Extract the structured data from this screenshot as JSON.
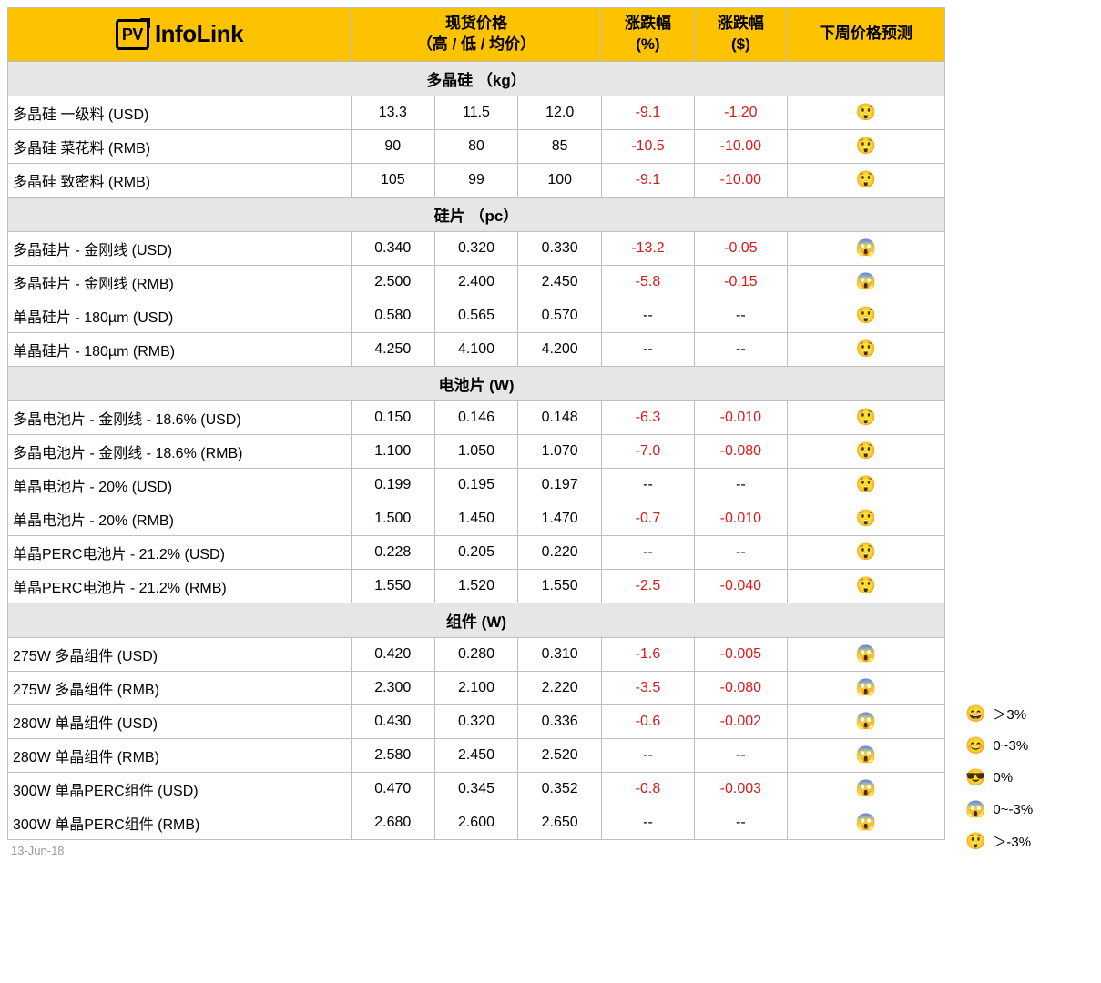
{
  "brand": {
    "pv": "PV",
    "name": "InfoLink"
  },
  "header": {
    "spot_price_l1": "现货价格",
    "spot_price_l2": "（高 / 低 / 均价）",
    "change_pct_l1": "涨跌幅",
    "change_pct_l2": "(%)",
    "change_dol_l1": "涨跌幅",
    "change_dol_l2": "($)",
    "forecast": "下周价格预测"
  },
  "sections": [
    {
      "title": "多晶硅 （kg）",
      "rows": [
        {
          "label": "多晶硅 一级料 (USD)",
          "high": "13.3",
          "low": "11.5",
          "avg": "12.0",
          "pct": "-9.1",
          "dol": "-1.20",
          "fc": "😲"
        },
        {
          "label": "多晶硅 菜花料 (RMB)",
          "high": "90",
          "low": "80",
          "avg": "85",
          "pct": "-10.5",
          "dol": "-10.00",
          "fc": "😲"
        },
        {
          "label": "多晶硅 致密料 (RMB)",
          "high": "105",
          "low": "99",
          "avg": "100",
          "pct": "-9.1",
          "dol": "-10.00",
          "fc": "😲"
        }
      ]
    },
    {
      "title": "硅片 （pc）",
      "rows": [
        {
          "label": "多晶硅片 - 金刚线 (USD)",
          "high": "0.340",
          "low": "0.320",
          "avg": "0.330",
          "pct": "-13.2",
          "dol": "-0.05",
          "fc": "😱"
        },
        {
          "label": "多晶硅片 - 金刚线 (RMB)",
          "high": "2.500",
          "low": "2.400",
          "avg": "2.450",
          "pct": "-5.8",
          "dol": "-0.15",
          "fc": "😱"
        },
        {
          "label": "单晶硅片 - 180µm (USD)",
          "high": "0.580",
          "low": "0.565",
          "avg": "0.570",
          "pct": "--",
          "dol": "--",
          "fc": "😲"
        },
        {
          "label": "单晶硅片 - 180µm (RMB)",
          "high": "4.250",
          "low": "4.100",
          "avg": "4.200",
          "pct": "--",
          "dol": "--",
          "fc": "😲"
        }
      ]
    },
    {
      "title": "电池片 (W)",
      "rows": [
        {
          "label": "多晶电池片 - 金刚线 - 18.6% (USD)",
          "high": "0.150",
          "low": "0.146",
          "avg": "0.148",
          "pct": "-6.3",
          "dol": "-0.010",
          "fc": "😲"
        },
        {
          "label": "多晶电池片 - 金刚线 - 18.6% (RMB)",
          "high": "1.100",
          "low": "1.050",
          "avg": "1.070",
          "pct": "-7.0",
          "dol": "-0.080",
          "fc": "😲"
        },
        {
          "label": "单晶电池片 - 20% (USD)",
          "high": "0.199",
          "low": "0.195",
          "avg": "0.197",
          "pct": "--",
          "dol": "--",
          "fc": "😲"
        },
        {
          "label": "单晶电池片 - 20% (RMB)",
          "high": "1.500",
          "low": "1.450",
          "avg": "1.470",
          "pct": "-0.7",
          "dol": "-0.010",
          "fc": "😲"
        },
        {
          "label": "单晶PERC电池片 - 21.2% (USD)",
          "high": "0.228",
          "low": "0.205",
          "avg": "0.220",
          "pct": "--",
          "dol": "--",
          "fc": "😲"
        },
        {
          "label": "单晶PERC电池片 - 21.2% (RMB)",
          "high": "1.550",
          "low": "1.520",
          "avg": "1.550",
          "pct": "-2.5",
          "dol": "-0.040",
          "fc": "😲"
        }
      ]
    },
    {
      "title": "组件 (W)",
      "rows": [
        {
          "label": "275W 多晶组件 (USD)",
          "high": "0.420",
          "low": "0.280",
          "avg": "0.310",
          "pct": "-1.6",
          "dol": "-0.005",
          "fc": "😱"
        },
        {
          "label": "275W 多晶组件 (RMB)",
          "high": "2.300",
          "low": "2.100",
          "avg": "2.220",
          "pct": "-3.5",
          "dol": "-0.080",
          "fc": "😱"
        },
        {
          "label": "280W 单晶组件 (USD)",
          "high": "0.430",
          "low": "0.320",
          "avg": "0.336",
          "pct": "-0.6",
          "dol": "-0.002",
          "fc": "😱"
        },
        {
          "label": "280W 单晶组件 (RMB)",
          "high": "2.580",
          "low": "2.450",
          "avg": "2.520",
          "pct": "--",
          "dol": "--",
          "fc": "😱"
        },
        {
          "label": "300W 单晶PERC组件 (USD)",
          "high": "0.470",
          "low": "0.345",
          "avg": "0.352",
          "pct": "-0.8",
          "dol": "-0.003",
          "fc": "😱"
        },
        {
          "label": "300W 单晶PERC组件 (RMB)",
          "high": "2.680",
          "low": "2.600",
          "avg": "2.650",
          "pct": "--",
          "dol": "--",
          "fc": "😱"
        }
      ]
    }
  ],
  "footer": {
    "date": "13-Jun-18"
  },
  "legend": [
    {
      "icon": "😄",
      "text": "＞3%"
    },
    {
      "icon": "😊",
      "text": "0~3%"
    },
    {
      "icon": "😎",
      "text": "0%"
    },
    {
      "icon": "😱",
      "text": "0~-3%"
    },
    {
      "icon": "😲",
      "text": "＞-3%"
    }
  ],
  "colors": {
    "header_bg": "#fdc300",
    "section_bg": "#e6e6e6",
    "border": "#bfbfbf",
    "negative": "#d71a1a",
    "muted": "#9a9a9a"
  }
}
